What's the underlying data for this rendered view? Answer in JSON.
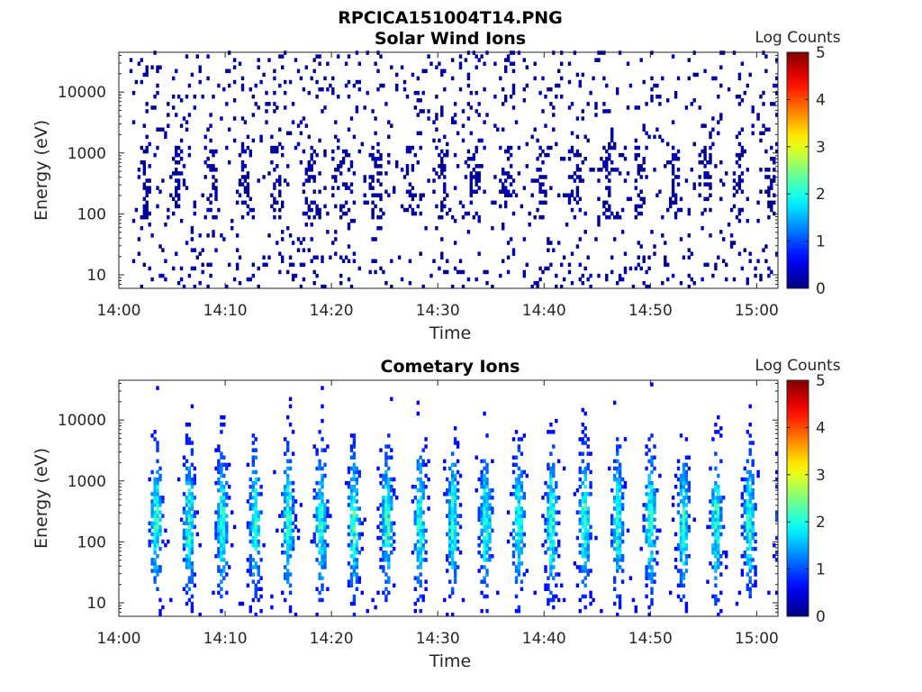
{
  "figure_title": "RPCICA151004T14.PNG",
  "chart_data": [
    {
      "type": "heatmap",
      "title": "Solar Wind Ions",
      "xlabel": "Time",
      "ylabel": "Energy (eV)",
      "x_ticks": [
        "14:00",
        "14:10",
        "14:20",
        "14:30",
        "14:40",
        "14:50",
        "15:00"
      ],
      "y_ticks": [
        "10",
        "100",
        "1000",
        "10000"
      ],
      "y_scale": "log",
      "ylim": [
        6,
        45000
      ],
      "xlim": [
        "14:00",
        "15:02"
      ],
      "data_start": "14:01",
      "colorbar": {
        "label": "Log Counts",
        "ticks": [
          "0",
          "1",
          "2",
          "3",
          "4",
          "5"
        ],
        "range": [
          0,
          5
        ],
        "colormap": "jet"
      },
      "pulse_period_min": 3.1,
      "pulse_center_energy_ev": 300,
      "peak_log_counts": 0.3,
      "background": "sparse low counts (log ~0) scattered 10-40000 eV"
    },
    {
      "type": "heatmap",
      "title": "Cometary Ions",
      "xlabel": "Time",
      "ylabel": "Energy (eV)",
      "x_ticks": [
        "14:00",
        "14:10",
        "14:20",
        "14:30",
        "14:40",
        "14:50",
        "15:00"
      ],
      "y_ticks": [
        "10",
        "100",
        "1000",
        "10000"
      ],
      "y_scale": "log",
      "ylim": [
        6,
        45000
      ],
      "xlim": [
        "14:00",
        "15:02"
      ],
      "data_start": "14:02",
      "colorbar": {
        "label": "Log Counts",
        "ticks": [
          "0",
          "1",
          "2",
          "3",
          "4",
          "5"
        ],
        "range": [
          0,
          5
        ],
        "colormap": "jet"
      },
      "pulse_period_min": 3.1,
      "pulse_center_energy_ev": 200,
      "peak_log_counts": 2.0,
      "background": "periodic bursts 20-3000 eV, peak near 150-300 eV"
    }
  ]
}
